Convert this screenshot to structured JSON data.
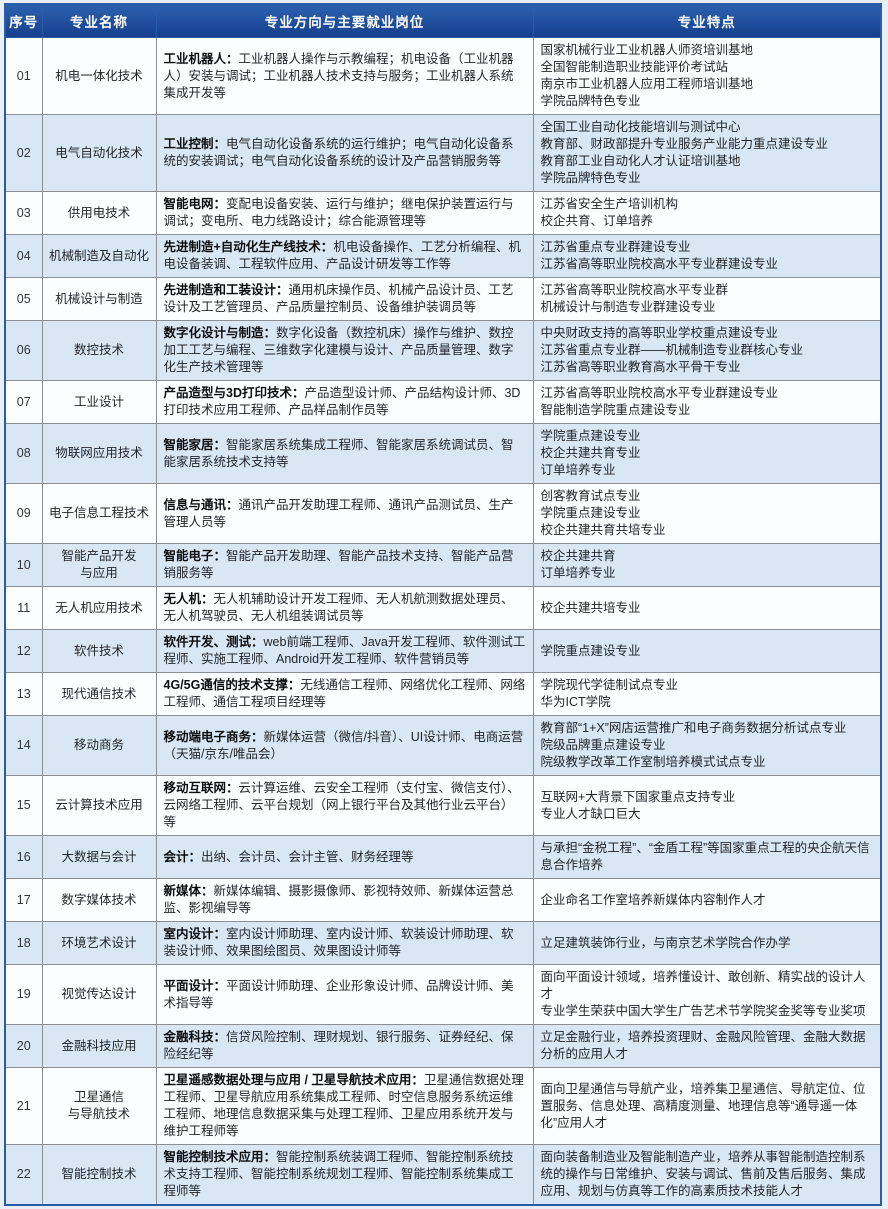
{
  "table": {
    "headers": [
      "序号",
      "专业名称",
      "专业方向与主要就业岗位",
      "专业特点"
    ],
    "rows": [
      {
        "no": "01",
        "major_lines": [
          "机电一体化技术"
        ],
        "direction_title": "工业机器人：",
        "direction_jobs": "工业机器人操作与示教编程；机电设备（工业机器人）安装与调试；工业机器人技术支持与服务；工业机器人系统集成开发等",
        "features": [
          "国家机械行业工业机器人师资培训基地",
          "全国智能制造职业技能评价考试站",
          "南京市工业机器人应用工程师培训基地",
          "学院品牌特色专业"
        ]
      },
      {
        "no": "02",
        "major_lines": [
          "电气自动化技术"
        ],
        "direction_title": "工业控制：",
        "direction_jobs": "电气自动化设备系统的运行维护；电气自动化设备系统的安装调试；电气自动化设备系统的设计及产品营销服务等",
        "features": [
          "全国工业自动化技能培训与测试中心",
          "教育部、财政部提升专业服务产业能力重点建设专业",
          "教育部工业自动化人才认证培训基地",
          "学院品牌特色专业"
        ]
      },
      {
        "no": "03",
        "major_lines": [
          "供用电技术"
        ],
        "direction_title": "智能电网：",
        "direction_jobs": "变配电设备安装、运行与维护；继电保护装置运行与调试；变电所、电力线路设计；综合能源管理等",
        "features": [
          "江苏省安全生产培训机构",
          "校企共育、订单培养"
        ]
      },
      {
        "no": "04",
        "major_lines": [
          "机械制造及自动化"
        ],
        "direction_title": "先进制造+自动化生产线技术：",
        "direction_jobs": "机电设备操作、工艺分析编程、机电设备装调、工程软件应用、产品设计研发等工作等",
        "features": [
          "江苏省重点专业群建设专业",
          "江苏省高等职业院校高水平专业群建设专业"
        ]
      },
      {
        "no": "05",
        "major_lines": [
          "机械设计与制造"
        ],
        "direction_title": "先进制造和工装设计：",
        "direction_jobs": "通用机床操作员、机械产品设计员、工艺设计及工艺管理员、产品质量控制员、设备维护装调员等",
        "features": [
          "江苏省高等职业院校高水平专业群",
          "机械设计与制造专业群建设专业"
        ]
      },
      {
        "no": "06",
        "major_lines": [
          "数控技术"
        ],
        "direction_title": "数字化设计与制造：",
        "direction_jobs": "数字化设备（数控机床）操作与维护、数控加工工艺与编程、三维数字化建模与设计、产品质量管理、数字化生产技术管理等",
        "features": [
          "中央财政支持的高等职业学校重点建设专业",
          "江苏省重点专业群——机械制造专业群核心专业",
          "江苏省高等职业教育高水平骨干专业"
        ]
      },
      {
        "no": "07",
        "major_lines": [
          "工业设计"
        ],
        "direction_title": "产品造型与3D打印技术：",
        "direction_jobs": "产品造型设计师、产品结构设计师、3D打印技术应用工程师、产品样品制作员等",
        "features": [
          "江苏省高等职业院校高水平专业群建设专业",
          "智能制造学院重点建设专业"
        ]
      },
      {
        "no": "08",
        "major_lines": [
          "物联网应用技术"
        ],
        "direction_title": "智能家居：",
        "direction_jobs": "智能家居系统集成工程师、智能家居系统调试员、智能家居系统技术支持等",
        "features": [
          "学院重点建设专业",
          "校企共建共育专业",
          "订单培养专业"
        ]
      },
      {
        "no": "09",
        "major_lines": [
          "电子信息工程技术"
        ],
        "direction_title": "信息与通讯：",
        "direction_jobs": "通讯产品开发助理工程师、通讯产品测试员、生产管理人员等",
        "features": [
          "创客教育试点专业",
          "学院重点建设专业",
          "校企共建共育共培专业"
        ]
      },
      {
        "no": "10",
        "major_lines": [
          "智能产品开发",
          "与应用"
        ],
        "direction_title": "智能电子：",
        "direction_jobs": "智能产品开发助理、智能产品技术支持、智能产品营销服务等",
        "features": [
          "校企共建共育",
          "订单培养专业"
        ]
      },
      {
        "no": "11",
        "major_lines": [
          "无人机应用技术"
        ],
        "direction_title": "无人机：",
        "direction_jobs": "无人机辅助设计开发工程师、无人机航测数据处理员、无人机驾驶员、无人机组装调试员等",
        "features": [
          "校企共建共培专业"
        ]
      },
      {
        "no": "12",
        "major_lines": [
          "软件技术"
        ],
        "direction_title": "软件开发、测试：",
        "direction_jobs": "web前端工程师、Java开发工程师、软件测试工程师、实施工程师、Android开发工程师、软件营销员等",
        "features": [
          "学院重点建设专业"
        ]
      },
      {
        "no": "13",
        "major_lines": [
          "现代通信技术"
        ],
        "direction_title": "4G/5G通信的技术支撑：",
        "direction_jobs": "无线通信工程师、网络优化工程师、网络工程师、通信工程项目经理等",
        "features": [
          "学院现代学徒制试点专业",
          "华为ICT学院"
        ]
      },
      {
        "no": "14",
        "major_lines": [
          "移动商务"
        ],
        "direction_title": "移动端电子商务：",
        "direction_jobs": "新媒体运营（微信/抖音）、UI设计师、电商运营（天猫/京东/唯品会）",
        "features": [
          "教育部“1+X”网店运营推广和电子商务数据分析试点专业",
          "院级品牌重点建设专业",
          "院级教学改革工作室制培养模式试点专业"
        ]
      },
      {
        "no": "15",
        "major_lines": [
          "云计算技术应用"
        ],
        "direction_title": "移动互联网：",
        "direction_jobs": "云计算运维、云安全工程师（支付宝、微信支付）、云网络工程师、云平台规划（网上银行平台及其他行业云平台）等",
        "features": [
          "互联网+大背景下国家重点支持专业",
          "专业人才缺口巨大"
        ]
      },
      {
        "no": "16",
        "major_lines": [
          "大数据与会计"
        ],
        "direction_title": "会计：",
        "direction_jobs": "出纳、会计员、会计主管、财务经理等",
        "features": [
          "与承担“金税工程”、“金盾工程”等国家重点工程的央企航天信息合作培养"
        ]
      },
      {
        "no": "17",
        "major_lines": [
          "数字媒体技术"
        ],
        "direction_title": "新媒体：",
        "direction_jobs": "新媒体编辑、摄影摄像师、影视特效师、新媒体运营总监、影视编导等",
        "features": [
          "企业命名工作室培养新媒体内容制作人才"
        ]
      },
      {
        "no": "18",
        "major_lines": [
          "环境艺术设计"
        ],
        "direction_title": "室内设计：",
        "direction_jobs": "室内设计师助理、室内设计师、软装设计师助理、软装设计师、效果图绘图员、效果图设计师等",
        "features": [
          "立足建筑装饰行业，与南京艺术学院合作办学"
        ]
      },
      {
        "no": "19",
        "major_lines": [
          "视觉传达设计"
        ],
        "direction_title": "平面设计：",
        "direction_jobs": "平面设计师助理、企业形象设计师、品牌设计师、美术指导等",
        "features": [
          "面向平面设计领域，培养懂设计、敢创新、精实战的设计人才",
          "专业学生荣获中国大学生广告艺术节学院奖金奖等专业奖项"
        ]
      },
      {
        "no": "20",
        "major_lines": [
          "金融科技应用"
        ],
        "direction_title": "金融科技：",
        "direction_jobs": "信贷风险控制、理财规划、银行服务、证券经纪、保险经纪等",
        "features": [
          "立足金融行业，培养投资理财、金融风险管理、金融大数据分析的应用人才"
        ]
      },
      {
        "no": "21",
        "major_lines": [
          "卫星通信",
          "与导航技术"
        ],
        "direction_title": "卫星遥感数据处理与应用 / 卫星导航技术应用：",
        "direction_jobs": "卫星通信数据处理工程师、卫星导航应用系统集成工程师、时空信息服务系统运维工程师、地理信息数据采集与处理工程师、卫星应用系统开发与维护工程师等",
        "features": [
          "面向卫星通信与导航产业，培养集卫星通信、导航定位、位置服务、信息处理、高精度测量、地理信息等“通导遥一体化”应用人才"
        ]
      },
      {
        "no": "22",
        "major_lines": [
          "智能控制技术"
        ],
        "direction_title": "智能控制技术应用：",
        "direction_jobs": "智能控制系统装调工程师、智能控制系统技术支持工程师、智能控制系统规划工程师、智能控制系统集成工程师等",
        "features": [
          "面向装备制造业及智能制造产业，培养从事智能制造控制系统的操作与日常维护、安装与调试、售前及售后服务、集成应用、规划与仿真等工作的高素质技术技能人才"
        ]
      }
    ]
  }
}
